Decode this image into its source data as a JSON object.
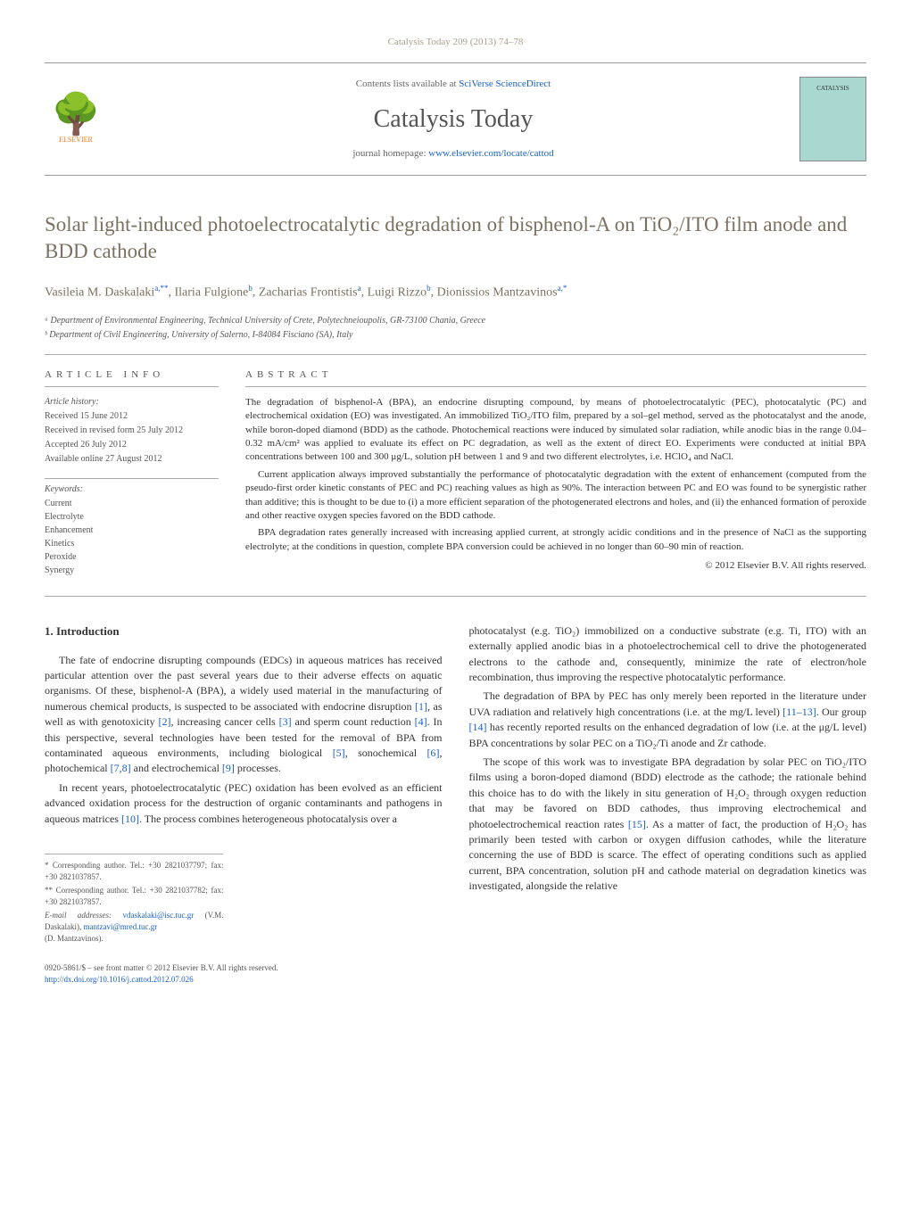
{
  "journal_ref": "Catalysis Today 209 (2013) 74–78",
  "header": {
    "contents_text": "Contents lists available at ",
    "contents_link": "SciVerse ScienceDirect",
    "journal_name": "Catalysis Today",
    "homepage_text": "journal homepage: ",
    "homepage_link": "www.elsevier.com/locate/cattod",
    "publisher": "ELSEVIER",
    "cover_label": "CATALYSIS"
  },
  "article": {
    "title": "Solar light-induced photoelectrocatalytic degradation of bisphenol-A on TiO₂/ITO film anode and BDD cathode",
    "authors_html": "Vasileia M. Daskalaki<sup>a,**</sup>, Ilaria Fulgione<sup>b</sup>, Zacharias Frontistis<sup>a</sup>, Luigi Rizzo<sup>b</sup>, Dionissios Mantzavinos<sup>a,*</sup>",
    "affiliations": [
      "ᵃ Department of Environmental Engineering, Technical University of Crete, Polytechneioupolis, GR-73100 Chania, Greece",
      "ᵇ Department of Civil Engineering, University of Salerno, I-84084 Fisciano (SA), Italy"
    ]
  },
  "info": {
    "heading": "ARTICLE INFO",
    "history_label": "Article history:",
    "history": [
      "Received 15 June 2012",
      "Received in revised form 25 July 2012",
      "Accepted 26 July 2012",
      "Available online 27 August 2012"
    ],
    "keywords_label": "Keywords:",
    "keywords": [
      "Current",
      "Electrolyte",
      "Enhancement",
      "Kinetics",
      "Peroxide",
      "Synergy"
    ]
  },
  "abstract": {
    "heading": "ABSTRACT",
    "p1": "The degradation of bisphenol-A (BPA), an endocrine disrupting compound, by means of photoelectrocatalytic (PEC), photocatalytic (PC) and electrochemical oxidation (EO) was investigated. An immobilized TiO₂/ITO film, prepared by a sol–gel method, served as the photocatalyst and the anode, while boron-doped diamond (BDD) as the cathode. Photochemical reactions were induced by simulated solar radiation, while anodic bias in the range 0.04–0.32 mA/cm² was applied to evaluate its effect on PC degradation, as well as the extent of direct EO. Experiments were conducted at initial BPA concentrations between 100 and 300 μg/L, solution pH between 1 and 9 and two different electrolytes, i.e. HClO₄ and NaCl.",
    "p2": "Current application always improved substantially the performance of photocatalytic degradation with the extent of enhancement (computed from the pseudo-first order kinetic constants of PEC and PC) reaching values as high as 90%. The interaction between PC and EO was found to be synergistic rather than additive; this is thought to be due to (i) a more efficient separation of the photogenerated electrons and holes, and (ii) the enhanced formation of peroxide and other reactive oxygen species favored on the BDD cathode.",
    "p3": "BPA degradation rates generally increased with increasing applied current, at strongly acidic conditions and in the presence of NaCl as the supporting electrolyte; at the conditions in question, complete BPA conversion could be achieved in no longer than 60–90 min of reaction.",
    "copyright": "© 2012 Elsevier B.V. All rights reserved."
  },
  "body": {
    "section_heading": "1. Introduction",
    "left_p1": "The fate of endocrine disrupting compounds (EDCs) in aqueous matrices has received particular attention over the past several years due to their adverse effects on aquatic organisms. Of these, bisphenol-A (BPA), a widely used material in the manufacturing of numerous chemical products, is suspected to be associated with endocrine disruption [1], as well as with genotoxicity [2], increasing cancer cells [3] and sperm count reduction [4]. In this perspective, several technologies have been tested for the removal of BPA from contaminated aqueous environments, including biological [5], sonochemical [6], photochemical [7,8] and electrochemical [9] processes.",
    "left_p2": "In recent years, photoelectrocatalytic (PEC) oxidation has been evolved as an efficient advanced oxidation process for the destruction of organic contaminants and pathogens in aqueous matrices [10]. The process combines heterogeneous photocatalysis over a",
    "right_p1": "photocatalyst (e.g. TiO₂) immobilized on a conductive substrate (e.g. Ti, ITO) with an externally applied anodic bias in a photoelectrochemical cell to drive the photogenerated electrons to the cathode and, consequently, minimize the rate of electron/hole recombination, thus improving the respective photocatalytic performance.",
    "right_p2": "The degradation of BPA by PEC has only merely been reported in the literature under UVA radiation and relatively high concentrations (i.e. at the mg/L level) [11–13]. Our group [14] has recently reported results on the enhanced degradation of low (i.e. at the μg/L level) BPA concentrations by solar PEC on a TiO₂/Ti anode and Zr cathode.",
    "right_p3": "The scope of this work was to investigate BPA degradation by solar PEC on TiO₂/ITO films using a boron-doped diamond (BDD) electrode as the cathode; the rationale behind this choice has to do with the likely in situ generation of H₂O₂ through oxygen reduction that may be favored on BDD cathodes, thus improving electrochemical and photoelectrochemical reaction rates [15]. As a matter of fact, the production of H₂O₂ has primarily been tested with carbon or oxygen diffusion cathodes, while the literature concerning the use of BDD is scarce. The effect of operating conditions such as applied current, BPA concentration, solution pH and cathode material on degradation kinetics was investigated, alongside the relative"
  },
  "footnotes": {
    "f1": "* Corresponding author. Tel.: +30 2821037797; fax: +30 2821037857.",
    "f2": "** Corresponding author. Tel.: +30 2821037782; fax: +30 2821037857.",
    "email_label": "E-mail addresses: ",
    "email1": "vdaskalaki@isc.tuc.gr",
    "email1_name": " (V.M. Daskalaki), ",
    "email2": "mantzavi@mred.tuc.gr",
    "email2_name": " (D. Mantzavinos)."
  },
  "doi": {
    "line1": "0920-5861/$ – see front matter © 2012 Elsevier B.V. All rights reserved.",
    "line2": "http://dx.doi.org/10.1016/j.cattod.2012.07.026"
  },
  "colors": {
    "muted_text": "#7a7160",
    "link": "#1a5fc4",
    "orange": "#e67817",
    "cover_bg": "#a8d8d0"
  }
}
